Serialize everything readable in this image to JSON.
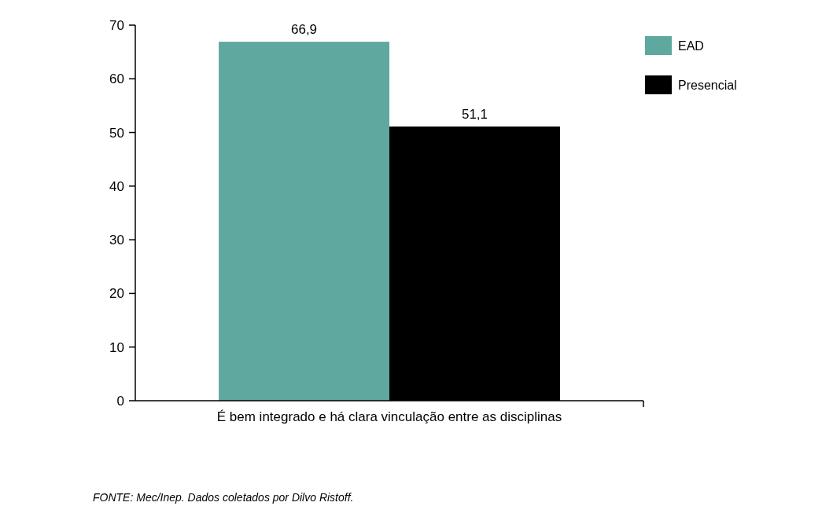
{
  "chart_data": {
    "type": "bar",
    "categories": [
      "É bem integrado e há clara vinculação entre as disciplinas"
    ],
    "series": [
      {
        "name": "EAD",
        "color": "#5fa89f",
        "values": [
          66.9
        ],
        "value_labels": [
          "66,9"
        ]
      },
      {
        "name": "Presencial",
        "color": "#000000",
        "values": [
          51.1
        ],
        "value_labels": [
          "51,1"
        ]
      }
    ],
    "ylim": [
      0,
      70
    ],
    "yticks": [
      0,
      10,
      20,
      30,
      40,
      50,
      60,
      70
    ],
    "legend": "top right",
    "annotations": [
      "FONTE: Mec/Inep. Dados coletados por Dilvo Ristoff."
    ]
  }
}
